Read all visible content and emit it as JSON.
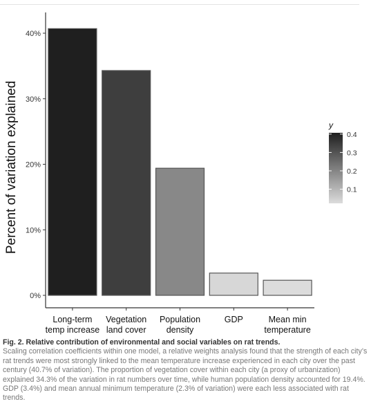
{
  "chart_data": {
    "type": "bar",
    "categories": [
      [
        "Long-term",
        "temp increase"
      ],
      [
        "Vegetation",
        "land cover"
      ],
      [
        "Population",
        "density"
      ],
      [
        "GDP"
      ],
      [
        "Mean min",
        "temperature"
      ]
    ],
    "values": [
      0.407,
      0.343,
      0.194,
      0.034,
      0.023
    ],
    "ylabel": "Percent of variation explained",
    "ylim": [
      0,
      0.43
    ],
    "yticks": [
      0,
      0.1,
      0.2,
      0.3,
      0.4
    ],
    "ytick_labels": [
      "0%",
      "10%",
      "20%",
      "30%",
      "40%"
    ],
    "legend": {
      "title": "y",
      "placement": "right",
      "ticks": [
        0.4,
        0.3,
        0.2,
        0.1
      ],
      "tick_labels": [
        "0.4",
        "0.3",
        "0.2",
        "0.1"
      ],
      "color_high": "#1f1f1f",
      "color_low": "#dcdcdc"
    },
    "grid": false
  },
  "caption": {
    "title": "Fig. 2. Relative contribution of environmental and social variables on rat trends.",
    "body": "Scaling correlation coefficients within one model, a relative weights analysis found that the strength of each city’s rat trends were most strongly linked to the mean temperature increase experienced in each city over the past century (40.7% of variation). The proportion of vegetation cover within each city (a proxy of urbanization) explained 34.3% of the variation in rat numbers over time, while human population density accounted for 19.4%. GDP (3.4%) and mean annual minimum temperature (2.3% of variation) were each less associated with rat trends."
  }
}
